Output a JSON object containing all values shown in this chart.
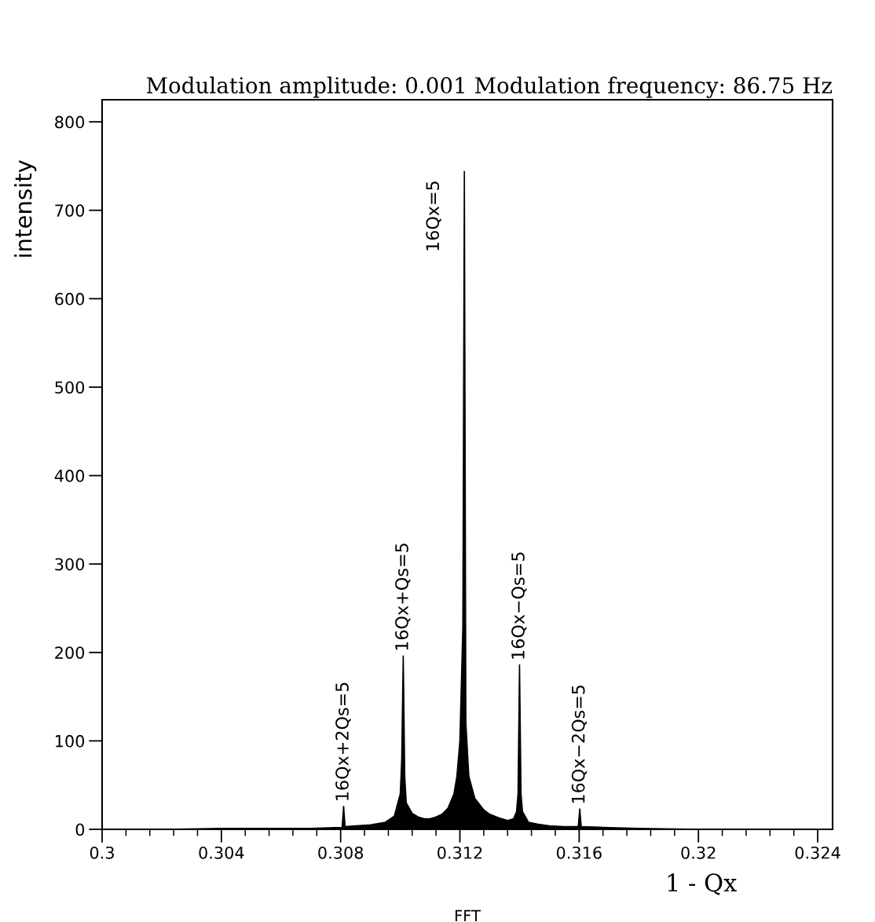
{
  "chart_data": {
    "type": "area",
    "title": "Modulation amplitude: 0.001 Modulation frequency: 86.75 Hz",
    "xlabel": "1 - Qx",
    "ylabel": "intensity",
    "x": [
      0.3,
      0.302,
      0.304,
      0.306,
      0.307,
      0.3078,
      0.30805,
      0.3081,
      0.30815,
      0.3085,
      0.309,
      0.3095,
      0.3098,
      0.31,
      0.31005,
      0.3101,
      0.31015,
      0.3102,
      0.3104,
      0.3106,
      0.3108,
      0.311,
      0.3112,
      0.3114,
      0.3116,
      0.3118,
      0.3119,
      0.312,
      0.31205,
      0.3121,
      0.31215,
      0.3122,
      0.3123,
      0.3125,
      0.3128,
      0.313,
      0.3133,
      0.3136,
      0.3138,
      0.3139,
      0.31395,
      0.314,
      0.31405,
      0.3141,
      0.3143,
      0.3146,
      0.315,
      0.3155,
      0.3159,
      0.31597,
      0.31602,
      0.31607,
      0.317,
      0.318,
      0.32,
      0.322,
      0.3245
    ],
    "values": [
      0,
      0,
      1,
      1,
      1,
      2,
      2,
      26,
      3,
      4,
      5,
      8,
      15,
      40,
      80,
      196,
      60,
      30,
      18,
      14,
      12,
      12,
      14,
      17,
      24,
      40,
      60,
      100,
      165,
      230,
      744,
      120,
      60,
      35,
      22,
      17,
      13,
      10,
      12,
      20,
      40,
      186,
      40,
      20,
      8,
      6,
      4,
      3,
      3,
      3,
      23,
      3,
      2,
      1,
      0,
      0,
      0
    ],
    "color": "#000000",
    "xlim": [
      0.3,
      0.3245
    ],
    "ylim": [
      0,
      825
    ],
    "xticks": [
      0.3,
      0.304,
      0.308,
      0.312,
      0.316,
      0.32,
      0.324
    ],
    "yticks": [
      0,
      100,
      200,
      300,
      400,
      500,
      600,
      700,
      800
    ],
    "grid": false,
    "annotations": [
      {
        "text": "16Qx+2Qs=5",
        "x": 0.3081,
        "y": 26
      },
      {
        "text": "16Qx+Qs=5",
        "x": 0.3101,
        "y": 196
      },
      {
        "text": "16Qx=5",
        "x": 0.31215,
        "y": 744
      },
      {
        "text": "16Qx−Qs=5",
        "x": 0.314,
        "y": 186
      },
      {
        "text": "16Qx−2Qs=5",
        "x": 0.31602,
        "y": 23
      },
      "FFT"
    ]
  }
}
